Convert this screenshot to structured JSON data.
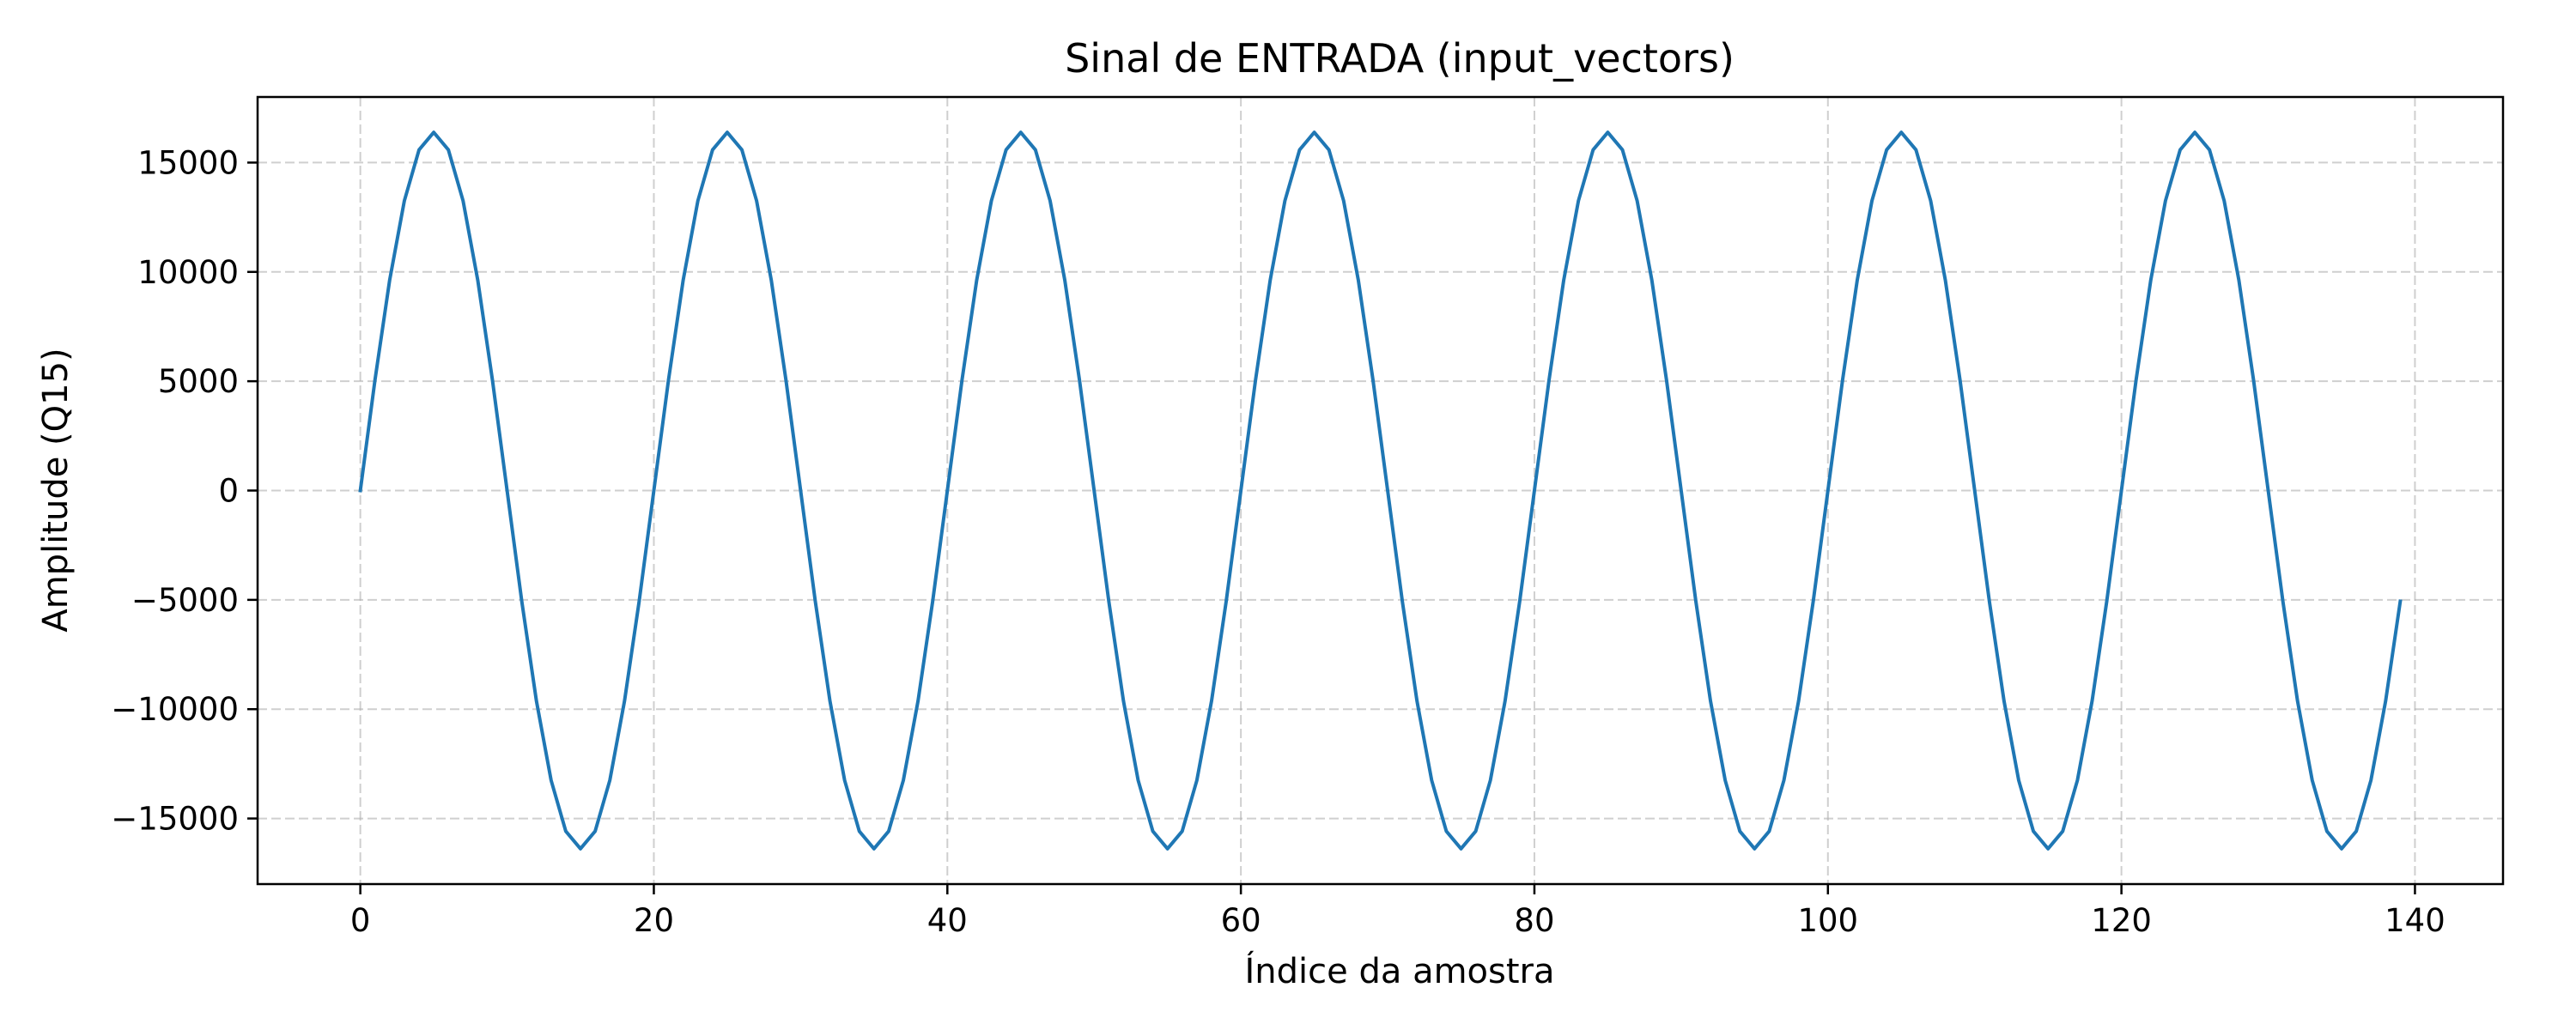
{
  "chart_data": {
    "type": "line",
    "title": "Sinal de ENTRADA (input_vectors)",
    "xlabel": "Índice da amostra",
    "ylabel": "Amplitude (Q15)",
    "xlim": [
      -7,
      146
    ],
    "ylim": [
      -18000,
      18000
    ],
    "xticks": [
      0,
      20,
      40,
      60,
      80,
      100,
      120,
      140
    ],
    "yticks": [
      15000,
      10000,
      5000,
      0,
      -5000,
      -10000,
      -15000
    ],
    "grid": true,
    "grid_style": "dashed",
    "series": [
      {
        "color": "#1f77b4",
        "x": [
          0,
          1,
          2,
          3,
          4,
          5,
          6,
          7,
          8,
          9,
          10,
          11,
          12,
          13,
          14,
          15,
          16,
          17,
          18,
          19,
          20,
          21,
          22,
          23,
          24,
          25,
          26,
          27,
          28,
          29,
          30,
          31,
          32,
          33,
          34,
          35,
          36,
          37,
          38,
          39,
          40,
          41,
          42,
          43,
          44,
          45,
          46,
          47,
          48,
          49,
          50,
          51,
          52,
          53,
          54,
          55,
          56,
          57,
          58,
          59,
          60,
          61,
          62,
          63,
          64,
          65,
          66,
          67,
          68,
          69,
          70,
          71,
          72,
          73,
          74,
          75,
          76,
          77,
          78,
          79,
          80,
          81,
          82,
          83,
          84,
          85,
          86,
          87,
          88,
          89,
          90,
          91,
          92,
          93,
          94,
          95,
          96,
          97,
          98,
          99,
          100,
          101,
          102,
          103,
          104,
          105,
          106,
          107,
          108,
          109,
          110,
          111,
          112,
          113,
          114,
          115,
          116,
          117,
          118,
          119,
          120,
          121,
          122,
          123,
          124,
          125,
          126,
          127,
          128,
          129,
          130,
          131,
          132,
          133,
          134,
          135,
          136,
          137,
          138,
          139
        ],
        "values": [
          0,
          5063,
          9630,
          13255,
          15582,
          16384,
          15582,
          13255,
          9630,
          5063,
          0,
          -5063,
          -9630,
          -13255,
          -15582,
          -16384,
          -15582,
          -13255,
          -9630,
          -5063,
          0,
          5063,
          9630,
          13255,
          15582,
          16384,
          15582,
          13255,
          9630,
          5063,
          0,
          -5063,
          -9630,
          -13255,
          -15582,
          -16384,
          -15582,
          -13255,
          -9630,
          -5063,
          0,
          5063,
          9630,
          13255,
          15582,
          16384,
          15582,
          13255,
          9630,
          5063,
          0,
          -5063,
          -9630,
          -13255,
          -15582,
          -16384,
          -15582,
          -13255,
          -9630,
          -5063,
          0,
          5063,
          9630,
          13255,
          15582,
          16384,
          15582,
          13255,
          9630,
          5063,
          0,
          -5063,
          -9630,
          -13255,
          -15582,
          -16384,
          -15582,
          -13255,
          -9630,
          -5063,
          0,
          5063,
          9630,
          13255,
          15582,
          16384,
          15582,
          13255,
          9630,
          5063,
          0,
          -5063,
          -9630,
          -13255,
          -15582,
          -16384,
          -15582,
          -13255,
          -9630,
          -5063,
          0,
          5063,
          9630,
          13255,
          15582,
          16384,
          15582,
          13255,
          9630,
          5063,
          0,
          -5063,
          -9630,
          -13255,
          -15582,
          -16384,
          -15582,
          -13255,
          -9630,
          -5063,
          0,
          5063,
          9630,
          13255,
          15582,
          16384,
          15582,
          13255,
          9630,
          5063,
          0,
          -5063,
          -9630,
          -13255,
          -15582,
          -16384,
          -15582,
          -13255,
          -9630,
          -5063
        ]
      }
    ]
  }
}
